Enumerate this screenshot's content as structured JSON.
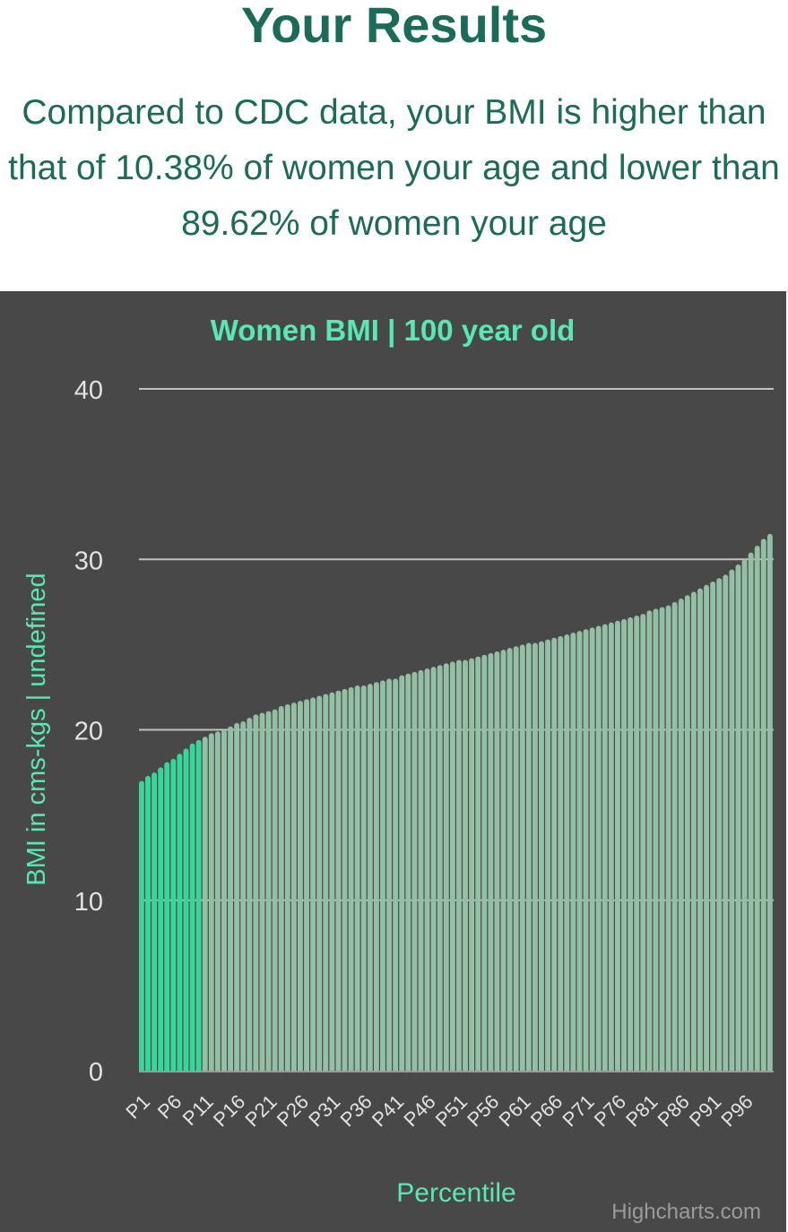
{
  "header": {
    "title": "Your Results",
    "summary": "Compared to CDC data, your BMI is higher than that of 10.38% of women your age and lower than 89.62% of women your age"
  },
  "credit": "Highcharts.com",
  "colors": {
    "highlight_bar": "#3ad59a",
    "normal_bar": "#93bfa5",
    "title_text": "#58e8b4",
    "axis_text": "#e2e2e2",
    "grid": "#c2c2c2",
    "panel_bg": "#484848"
  },
  "chart_data": {
    "type": "bar",
    "title": "Women BMI | 100 year old",
    "xlabel": "Percentile",
    "ylabel": "BMI in cms-kgs | undefined",
    "ylim": [
      0,
      40
    ],
    "yticks": [
      0,
      10,
      20,
      30,
      40
    ],
    "grid": true,
    "highlight_count": 10,
    "categories": [
      "P1",
      "P2",
      "P3",
      "P4",
      "P5",
      "P6",
      "P7",
      "P8",
      "P9",
      "P10",
      "P11",
      "P12",
      "P13",
      "P14",
      "P15",
      "P16",
      "P17",
      "P18",
      "P19",
      "P20",
      "P21",
      "P22",
      "P23",
      "P24",
      "P25",
      "P26",
      "P27",
      "P28",
      "P29",
      "P30",
      "P31",
      "P32",
      "P33",
      "P34",
      "P35",
      "P36",
      "P37",
      "P38",
      "P39",
      "P40",
      "P41",
      "P42",
      "P43",
      "P44",
      "P45",
      "P46",
      "P47",
      "P48",
      "P49",
      "P50",
      "P51",
      "P52",
      "P53",
      "P54",
      "P55",
      "P56",
      "P57",
      "P58",
      "P59",
      "P60",
      "P61",
      "P62",
      "P63",
      "P64",
      "P65",
      "P66",
      "P67",
      "P68",
      "P69",
      "P70",
      "P71",
      "P72",
      "P73",
      "P74",
      "P75",
      "P76",
      "P77",
      "P78",
      "P79",
      "P80",
      "P81",
      "P82",
      "P83",
      "P84",
      "P85",
      "P86",
      "P87",
      "P88",
      "P89",
      "P90",
      "P91",
      "P92",
      "P93",
      "P94",
      "P95",
      "P96",
      "P97",
      "P98",
      "P99",
      "P100"
    ],
    "tick_labels": [
      "P1",
      "P6",
      "P11",
      "P16",
      "P21",
      "P26",
      "P31",
      "P36",
      "P41",
      "P46",
      "P51",
      "P56",
      "P61",
      "P66",
      "P71",
      "P76",
      "P81",
      "P86",
      "P91",
      "P96"
    ],
    "values": [
      17.0,
      17.3,
      17.5,
      17.8,
      18.1,
      18.3,
      18.6,
      18.9,
      19.2,
      19.4,
      19.6,
      19.8,
      19.9,
      20.0,
      20.2,
      20.4,
      20.5,
      20.7,
      20.9,
      21.0,
      21.1,
      21.2,
      21.4,
      21.5,
      21.6,
      21.7,
      21.8,
      21.9,
      22.0,
      22.1,
      22.2,
      22.3,
      22.4,
      22.5,
      22.6,
      22.6,
      22.7,
      22.8,
      22.9,
      23.0,
      23.0,
      23.2,
      23.3,
      23.4,
      23.5,
      23.6,
      23.7,
      23.8,
      23.9,
      24.0,
      24.1,
      24.1,
      24.2,
      24.3,
      24.4,
      24.5,
      24.6,
      24.7,
      24.8,
      24.9,
      25.0,
      25.1,
      25.1,
      25.2,
      25.3,
      25.4,
      25.5,
      25.6,
      25.7,
      25.8,
      25.9,
      26.0,
      26.1,
      26.2,
      26.3,
      26.4,
      26.5,
      26.6,
      26.7,
      26.8,
      27.0,
      27.1,
      27.2,
      27.3,
      27.5,
      27.7,
      27.9,
      28.1,
      28.3,
      28.5,
      28.7,
      28.9,
      29.1,
      29.4,
      29.7,
      30.0,
      30.4,
      30.8,
      31.2,
      31.5
    ]
  }
}
